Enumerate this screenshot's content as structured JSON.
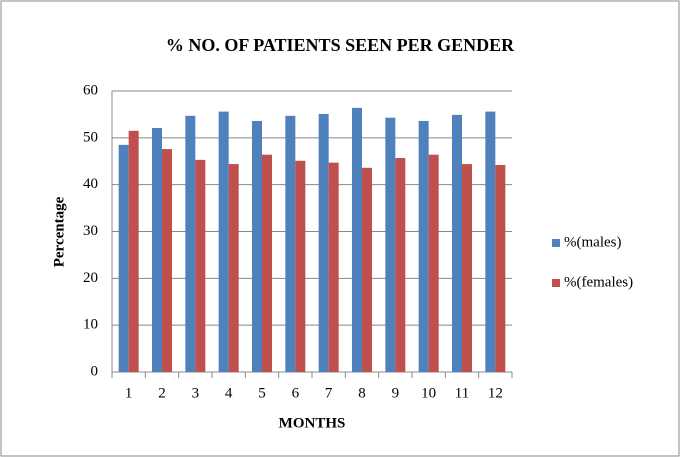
{
  "chart_data": {
    "type": "bar",
    "title": "% NO. OF PATIENTS SEEN PER GENDER",
    "xlabel": "MONTHS",
    "ylabel": "Percentage",
    "categories": [
      "1",
      "2",
      "3",
      "4",
      "5",
      "6",
      "7",
      "8",
      "9",
      "10",
      "11",
      "12"
    ],
    "series": [
      {
        "name": "%(males)",
        "color": "#4f81bd",
        "values": [
          48.5,
          52.1,
          54.7,
          55.6,
          53.6,
          54.7,
          55.1,
          56.4,
          54.3,
          53.6,
          54.9,
          55.6
        ]
      },
      {
        "name": "%(females)",
        "color": "#c0504d",
        "values": [
          51.5,
          47.6,
          45.3,
          44.4,
          46.4,
          45.1,
          44.7,
          43.6,
          45.7,
          46.4,
          44.4,
          44.2
        ]
      }
    ],
    "ylim": [
      0,
      60
    ],
    "yticks": [
      0,
      10,
      20,
      30,
      40,
      50,
      60
    ],
    "grid": true,
    "legend": "right"
  }
}
